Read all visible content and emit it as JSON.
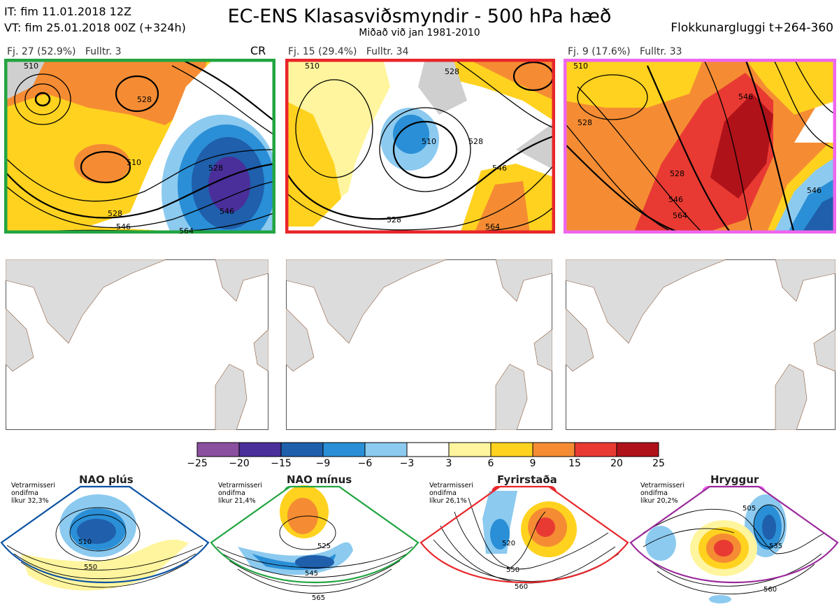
{
  "header": {
    "it": "IT: fim 11.01.2018 12Z",
    "vt": "VT: fim 25.01.2018 00Z  (+324h)",
    "title": "EC-ENS Klasasviðsmyndir - 500 hPa hæð",
    "subtitle": "Miðað við jan 1981-2010",
    "window": "Flokkunargluggi t+264-360"
  },
  "clusters": [
    {
      "label": "Fj. 27 (52.9%)",
      "rep": "Fulltr. 3",
      "tag": "CR",
      "border": "#22a541"
    },
    {
      "label": "Fj. 15 (29.4%)",
      "rep": "Fulltr. 34",
      "tag": "",
      "border": "#e8262a"
    },
    {
      "label": "Fj. 9 (17.6%)",
      "rep": "Fulltr. 33",
      "tag": "",
      "border": "#ee66ee"
    }
  ],
  "contour_labels": {
    "c1": [
      "510",
      "528",
      "510",
      "528",
      "546",
      "528",
      "546",
      "564"
    ],
    "c2": [
      "510",
      "528",
      "510",
      "528",
      "546",
      "528",
      "564"
    ],
    "c3": [
      "510",
      "528",
      "546",
      "528",
      "546",
      "564",
      "546"
    ]
  },
  "colorbar": {
    "ticks": [
      "−25",
      "−20",
      "−15",
      "−9",
      "−6",
      "−3",
      "3",
      "6",
      "9",
      "15",
      "20",
      "25"
    ],
    "colors": [
      "#8b4fa0",
      "#4a2f9a",
      "#1f5fab",
      "#2a8fd6",
      "#8ccaf0",
      "#ffffff",
      "#fff59e",
      "#ffd21f",
      "#f58c33",
      "#e83a32",
      "#b0121a"
    ]
  },
  "regimes": [
    {
      "name": "NAO plús",
      "prob_text": "Vetrarmisseri\nondifma\nlíkur 32,3%",
      "color": "#0b52a3",
      "labels": [
        "510",
        "550"
      ]
    },
    {
      "name": "NAO mínus",
      "prob_text": "Vetrarmisseri\nondifma\nlíkur 21,4%",
      "color": "#22a541",
      "labels": [
        "525",
        "545",
        "565"
      ]
    },
    {
      "name": "Fyrirstaða",
      "prob_text": "Vetrarmisseri\nondifma\nlíkur 26,1%",
      "color": "#e8262a",
      "labels": [
        "520",
        "550",
        "560"
      ]
    },
    {
      "name": "Hryggur",
      "prob_text": "Vetrarmisseri\nondifma\nlíkur 20,2%",
      "color": "#ee66ee",
      "labels": [
        "505",
        "535",
        "560"
      ]
    }
  ]
}
